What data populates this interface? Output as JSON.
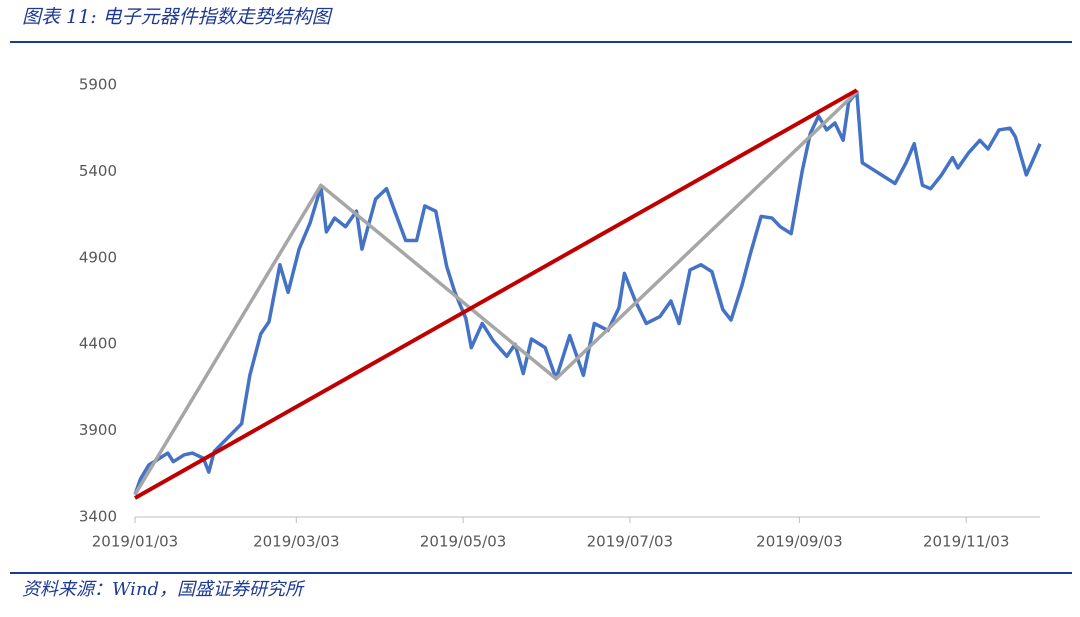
{
  "title": "图表 11: 电子元器件指数走势结构图",
  "source": "资料来源：Wind，国盛证券研究所",
  "chart_data": {
    "type": "line",
    "xlim": [
      "2019/01/03",
      "2019/11/30"
    ],
    "xticks": [
      "2019/01/03",
      "2019/03/03",
      "2019/05/03",
      "2019/07/03",
      "2019/09/03",
      "2019/11/03"
    ],
    "ylim": [
      3400,
      5900
    ],
    "yticks": [
      3400,
      3900,
      4400,
      4900,
      5400,
      5900
    ],
    "series": [
      {
        "color": "#4472c4",
        "width": 3.5,
        "x": [
          "2019/01/03",
          "2019/01/05",
          "2019/01/08",
          "2019/01/12",
          "2019/01/15",
          "2019/01/17",
          "2019/01/21",
          "2019/01/24",
          "2019/01/28",
          "2019/01/30",
          "2019/02/01",
          "2019/02/11",
          "2019/02/14",
          "2019/02/18",
          "2019/02/21",
          "2019/02/25",
          "2019/02/28",
          "2019/03/04",
          "2019/03/08",
          "2019/03/12",
          "2019/03/14",
          "2019/03/17",
          "2019/03/21",
          "2019/03/25",
          "2019/03/27",
          "2019/04/01",
          "2019/04/05",
          "2019/04/08",
          "2019/04/12",
          "2019/04/16",
          "2019/04/19",
          "2019/04/23",
          "2019/04/27",
          "2019/04/30",
          "2019/05/04",
          "2019/05/06",
          "2019/05/10",
          "2019/05/14",
          "2019/05/19",
          "2019/05/22",
          "2019/05/25",
          "2019/05/28",
          "2019/06/02",
          "2019/06/06",
          "2019/06/11",
          "2019/06/16",
          "2019/06/20",
          "2019/06/25",
          "2019/06/29",
          "2019/07/01",
          "2019/07/05",
          "2019/07/09",
          "2019/07/14",
          "2019/07/18",
          "2019/07/21",
          "2019/07/25",
          "2019/07/29",
          "2019/08/02",
          "2019/08/06",
          "2019/08/09",
          "2019/08/13",
          "2019/08/16",
          "2019/08/20",
          "2019/08/24",
          "2019/08/27",
          "2019/08/31",
          "2019/09/04",
          "2019/09/07",
          "2019/09/10",
          "2019/09/13",
          "2019/09/16",
          "2019/09/19",
          "2019/09/21",
          "2019/09/24",
          "2019/09/26",
          "2019/09/29",
          "2019/10/03",
          "2019/10/08",
          "2019/10/12",
          "2019/10/15",
          "2019/10/18",
          "2019/10/21",
          "2019/10/25",
          "2019/10/29",
          "2019/10/31",
          "2019/11/04",
          "2019/11/08",
          "2019/11/11",
          "2019/11/15",
          "2019/11/19",
          "2019/11/21",
          "2019/11/25",
          "2019/11/27",
          "2019/11/30"
        ],
        "values": [
          3530,
          3620,
          3700,
          3740,
          3770,
          3720,
          3760,
          3770,
          3740,
          3660,
          3780,
          3940,
          4220,
          4460,
          4530,
          4860,
          4700,
          4950,
          5100,
          5310,
          5050,
          5130,
          5080,
          5170,
          4950,
          5240,
          5300,
          5170,
          5000,
          5000,
          5200,
          5170,
          4850,
          4700,
          4550,
          4380,
          4520,
          4420,
          4330,
          4400,
          4230,
          4430,
          4380,
          4200,
          4450,
          4220,
          4520,
          4480,
          4610,
          4810,
          4650,
          4520,
          4560,
          4650,
          4520,
          4830,
          4860,
          4820,
          4600,
          4540,
          4740,
          4920,
          5140,
          5130,
          5080,
          5040,
          5400,
          5620,
          5720,
          5640,
          5680,
          5580,
          5800,
          5860,
          5450,
          5420,
          5380,
          5330,
          5450,
          5560,
          5320,
          5300,
          5380,
          5480,
          5420,
          5510,
          5580,
          5530,
          5640,
          5650,
          5600,
          5380,
          5450,
          5560
        ]
      },
      {
        "color": "#a6a6a6",
        "width": 3.5,
        "x": [
          "2019/01/03",
          "2019/03/12",
          "2019/06/06",
          "2019/09/24"
        ],
        "values": [
          3530,
          5320,
          4200,
          5860
        ]
      },
      {
        "color": "#c00000",
        "width": 4,
        "x": [
          "2019/01/03",
          "2019/09/24"
        ],
        "values": [
          3510,
          5870
        ]
      }
    ]
  }
}
